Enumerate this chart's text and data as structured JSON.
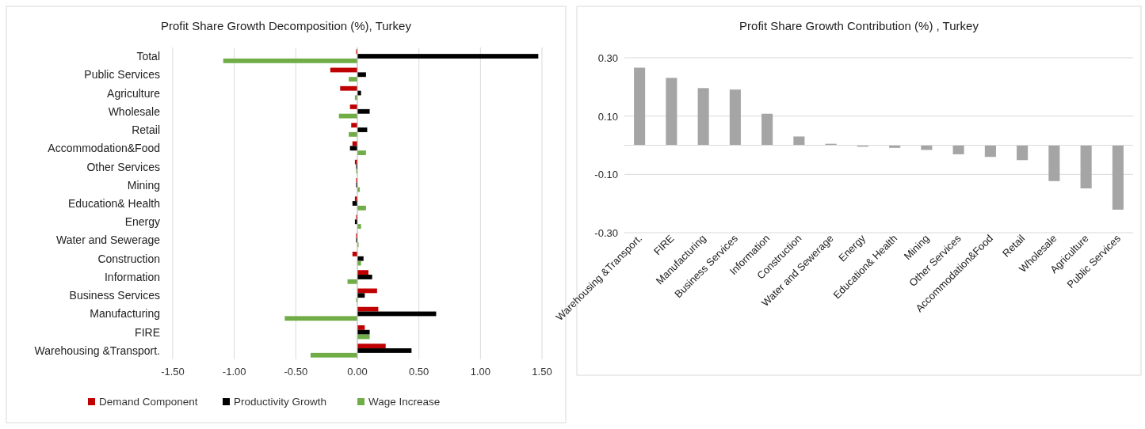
{
  "chart_data": [
    {
      "type": "bar",
      "orientation": "horizontal",
      "title": "Profit Share Growth Decomposition  (%), Turkey",
      "categories": [
        "Total",
        "Public Services",
        "Agriculture",
        "Wholesale",
        "Retail",
        "Accommodation&Food",
        "Other Services",
        "Mining",
        "Education& Health",
        "Energy",
        "Water and Sewerage",
        "Construction",
        "Information",
        "Business Services",
        "Manufacturing",
        "FIRE",
        "Warehousing &Transport."
      ],
      "series": [
        {
          "name": "Demand Component",
          "color": "#c00000",
          "values": [
            -0.01,
            -0.22,
            -0.14,
            -0.06,
            -0.05,
            -0.04,
            -0.02,
            -0.01,
            -0.02,
            -0.01,
            -0.01,
            -0.04,
            0.09,
            0.16,
            0.17,
            0.06,
            0.23
          ]
        },
        {
          "name": "Productivity Growth",
          "color": "#000000",
          "values": [
            1.47,
            0.07,
            0.03,
            0.1,
            0.08,
            -0.06,
            -0.01,
            -0.01,
            -0.04,
            -0.02,
            -0.01,
            0.05,
            0.12,
            0.06,
            0.64,
            0.1,
            0.44
          ]
        },
        {
          "name": "Wage Increase",
          "color": "#70ad47",
          "values": [
            -1.09,
            -0.07,
            -0.02,
            -0.15,
            -0.07,
            0.07,
            -0.01,
            0.02,
            0.07,
            0.03,
            0.01,
            0.03,
            -0.08,
            -0.01,
            -0.59,
            0.1,
            -0.38
          ]
        }
      ],
      "xlim": [
        -1.5,
        1.5
      ],
      "xticks": [
        {
          "value": -1.5,
          "label": "-1.50"
        },
        {
          "value": -1,
          "label": "-1.00"
        },
        {
          "value": -0.5,
          "label": "-0.50"
        },
        {
          "value": 0,
          "label": "0.00"
        },
        {
          "value": 0.5,
          "label": "0.50"
        },
        {
          "value": 1,
          "label": "1.00"
        },
        {
          "value": 1.5,
          "label": "1.50"
        }
      ],
      "grid": "x",
      "legend": "bottom"
    },
    {
      "type": "bar",
      "title": "Profit Share Growth Contribution  (%) , Turkey",
      "categories": [
        "Warehousing &Transport.",
        "FIRE",
        "Manufacturing",
        "Business Services",
        "Information",
        "Construction",
        "Water and Sewerage",
        "Energy",
        "Education& Health",
        "Mining",
        "Other Services",
        "Accommodation&Food",
        "Retail",
        "Wholesale",
        "Agriculture",
        "Public Services"
      ],
      "series": [
        {
          "color": "#a5a5a5",
          "values": [
            0.266,
            0.231,
            0.196,
            0.191,
            0.108,
            0.03,
            0.005,
            -0.005,
            -0.009,
            -0.016,
            -0.031,
            -0.04,
            -0.051,
            -0.123,
            -0.148,
            -0.221
          ]
        }
      ],
      "ylim": [
        -0.3,
        0.3
      ],
      "yticks": [
        {
          "value": -0.3,
          "label": "-0.30"
        },
        {
          "value": -0.1,
          "label": "-0.10"
        },
        {
          "value": 0.1,
          "label": "0.10"
        },
        {
          "value": 0.3,
          "label": "0.30"
        }
      ],
      "grid": "y"
    }
  ]
}
